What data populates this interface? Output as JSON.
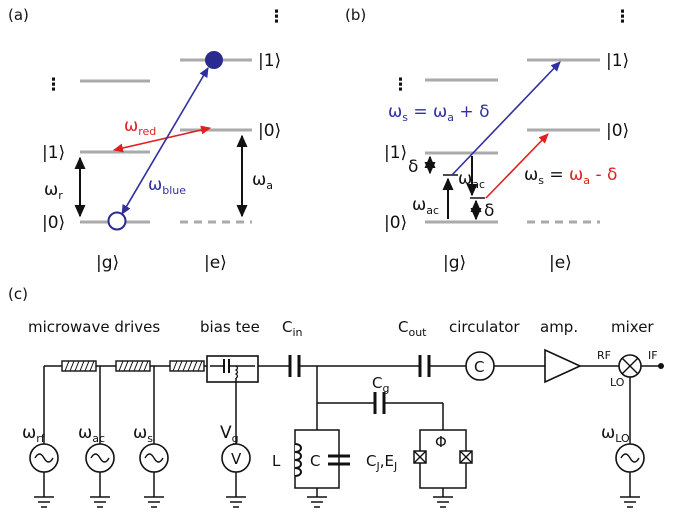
{
  "panel_a": {
    "label": "(a)",
    "ket1_left": "|1⟩",
    "ket0_left": "|0⟩",
    "ket1_right": "|1⟩",
    "ket0_right": "|0⟩",
    "omega_r": "ω",
    "omega_r_sub": "r",
    "omega_red": "ω",
    "omega_red_sub": "red",
    "omega_blue": "ω",
    "omega_blue_sub": "blue",
    "omega_a": "ω",
    "omega_a_sub": "a",
    "g_label": "|g⟩",
    "e_label": "|e⟩",
    "ellipsis": "⋮",
    "colors": {
      "red": "#e02020",
      "blue": "#3030a0",
      "level": "#aaaaaa"
    }
  },
  "panel_b": {
    "label": "(b)",
    "ket1_left": "|1⟩",
    "ket0_left": "|0⟩",
    "ket1_right": "|1⟩",
    "ket0_right": "|0⟩",
    "blue_eq": "ω",
    "blue_eq_sub": "s",
    "blue_eq_rhs": " = ω",
    "blue_eq_rhs_sub": "a",
    "blue_eq_tail": " + δ",
    "red_eq": "ω",
    "red_eq_sub": "s",
    "red_eq_rhs": " = ",
    "red_eq_rhs2": "ω",
    "red_eq_rhs_sub": "a",
    "red_eq_tail": " - δ",
    "delta1": "δ",
    "delta2": "δ",
    "omega_ac1": "ω",
    "omega_ac1_sub": "ac",
    "omega_ac2": "ω",
    "omega_ac2_sub": "ac",
    "g_label": "|g⟩",
    "e_label": "|e⟩",
    "ellipsis": "⋮"
  },
  "panel_c": {
    "label": "(c)",
    "microwave_drives": "microwave drives",
    "bias_tee": "bias tee",
    "cin": "C",
    "cin_sub": "in",
    "cout": "C",
    "cout_sub": "out",
    "circulator": "circulator",
    "amp": "amp.",
    "mixer": "mixer",
    "cg": "C",
    "cg_sub": "g",
    "rf": "RF",
    "if": "IF",
    "lo": "LO",
    "w_rf": "ω",
    "w_rf_sub": "rf",
    "w_ac": "ω",
    "w_ac_sub": "ac",
    "w_s": "ω",
    "w_s_sub": "s",
    "vg": "V",
    "vg_sub": "g",
    "v_symbol": "V",
    "L": "L",
    "C": "C",
    "cjej": "C",
    "cjej_sub": "J",
    "cjej_mid": ",E",
    "cjej_sub2": "J",
    "phi": "Φ",
    "w_lo": "ω",
    "w_lo_sub": "LO",
    "circ_symbol": "C"
  }
}
